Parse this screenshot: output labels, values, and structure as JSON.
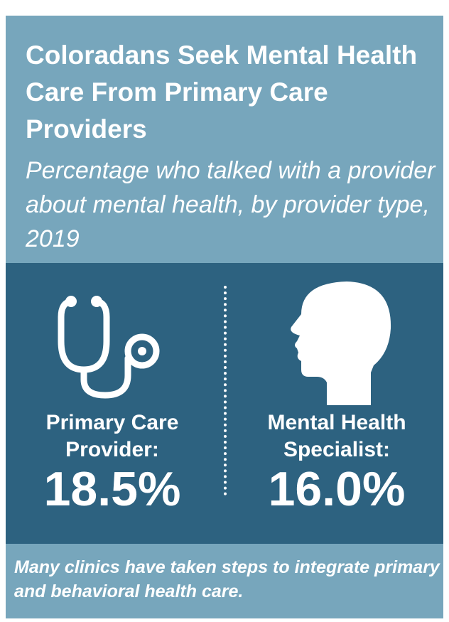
{
  "header": {
    "title": "Coloradans Seek Mental Health Care From Primary Care Providers",
    "subtitle": "Percentage who talked with a provider about mental health, by provider type, 2019"
  },
  "providers": [
    {
      "icon": "stethoscope-icon",
      "label": "Primary Care Provider:",
      "value": "18.5%"
    },
    {
      "icon": "head-profile-icon",
      "label": "Mental Health Specialist:",
      "value": "16.0%"
    }
  ],
  "footer": {
    "note": "Many clinics have taken steps to integrate primary and behavioral health care."
  },
  "colors": {
    "light_panel": "#77a6bc",
    "dark_panel": "#2d6280",
    "text": "#ffffff"
  }
}
